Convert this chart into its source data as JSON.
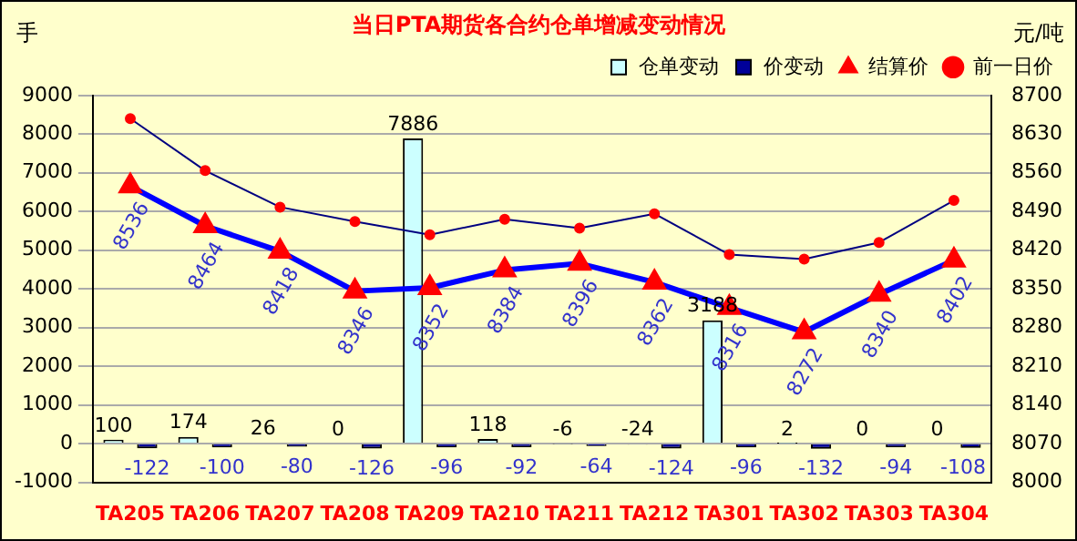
{
  "chart_data": {
    "type": "bar",
    "title": "当日PTA期货各合约仓单增减变动情况",
    "ylabel": "手",
    "y2label": "元/吨",
    "categories": [
      "TA205",
      "TA206",
      "TA207",
      "TA208",
      "TA209",
      "TA210",
      "TA211",
      "TA212",
      "TA301",
      "TA302",
      "TA303",
      "TA304"
    ],
    "series": [
      {
        "name": "仓单变动",
        "color": "#ccffff",
        "values": [
          100,
          174,
          26,
          0,
          7886,
          118,
          -6,
          -24,
          3188,
          2,
          0,
          0
        ],
        "value_labels": [
          "100",
          "174",
          "26",
          "0",
          "7886",
          "118",
          "-6",
          "-24",
          "3188",
          "2",
          "0",
          "0"
        ]
      },
      {
        "name": "价变动",
        "color": "#000099",
        "values": [
          -122,
          -100,
          -80,
          -126,
          -96,
          -92,
          -64,
          -124,
          -96,
          -132,
          -94,
          -108
        ],
        "value_labels": [
          "-122",
          "-100",
          "-80",
          "-126",
          "-96",
          "-92",
          "-64",
          "-124",
          "-96",
          "-132",
          "-94",
          "-108"
        ]
      },
      {
        "name": "结算价",
        "type": "line",
        "axis": "y2",
        "color": "#0000ff",
        "marker": "triangle",
        "values": [
          8536,
          8464,
          8418,
          8346,
          8352,
          8384,
          8396,
          8362,
          8316,
          8272,
          8340,
          8402
        ],
        "value_labels": [
          "8536",
          "8464",
          "8418",
          "8346",
          "8352",
          "8384",
          "8396",
          "8362",
          "8316",
          "8272",
          "8340",
          "8402"
        ]
      },
      {
        "name": "前一日价",
        "type": "line",
        "axis": "y2",
        "color": "#000080",
        "marker": "circle",
        "values": [
          8658,
          8564,
          8498,
          8472,
          8448,
          8476,
          8460,
          8486,
          8412,
          8404,
          8434,
          8510
        ]
      }
    ],
    "ylim": [
      -1000,
      9000
    ],
    "yticks": [
      -1000,
      0,
      1000,
      2000,
      3000,
      4000,
      5000,
      6000,
      7000,
      8000,
      9000
    ],
    "y2lim": [
      8000,
      8700
    ],
    "y2ticks": [
      8000,
      8070,
      8140,
      8210,
      8280,
      8350,
      8420,
      8490,
      8560,
      8630,
      8700
    ],
    "grid": "y",
    "legend": "top right"
  }
}
